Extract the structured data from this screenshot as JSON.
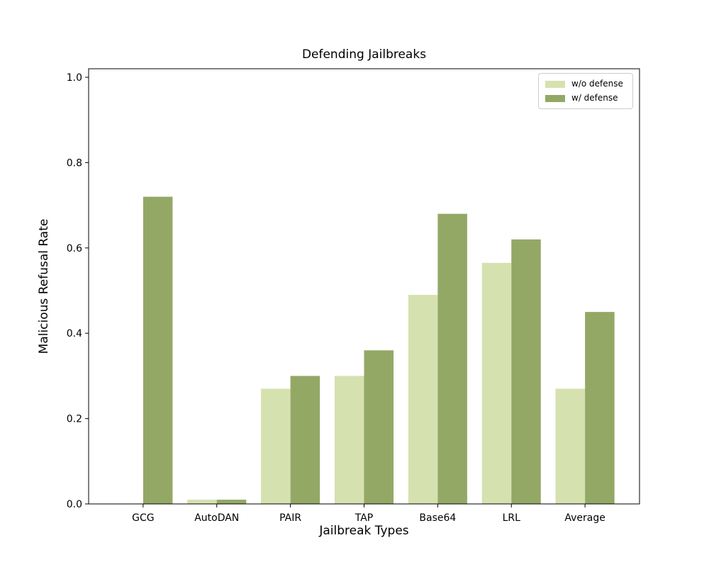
{
  "chart_data": {
    "type": "bar",
    "title": "Defending Jailbreaks",
    "xlabel": "Jailbreak Types",
    "ylabel": "Malicious Refusal Rate",
    "categories": [
      "GCG",
      "AutoDAN",
      "PAIR",
      "TAP",
      "Base64",
      "LRL",
      "Average"
    ],
    "series": [
      {
        "name": "w/o defense",
        "color": "#d5e1af",
        "values": [
          0.0,
          0.01,
          0.27,
          0.3,
          0.49,
          0.565,
          0.27
        ]
      },
      {
        "name": "w/ defense",
        "color": "#94a866",
        "values": [
          0.72,
          0.01,
          0.3,
          0.36,
          0.68,
          0.62,
          0.45
        ]
      }
    ],
    "ylim": [
      0,
      1.02
    ],
    "yticks": [
      0.0,
      0.2,
      0.4,
      0.6,
      0.8,
      1.0
    ],
    "ytick_labels": [
      "0.0",
      "0.2",
      "0.4",
      "0.6",
      "0.8",
      "1.0"
    ],
    "bar_width": 0.4,
    "grid": false,
    "legend_position": "upper right",
    "axis_color": "#000000",
    "background_color": "#ffffff"
  }
}
